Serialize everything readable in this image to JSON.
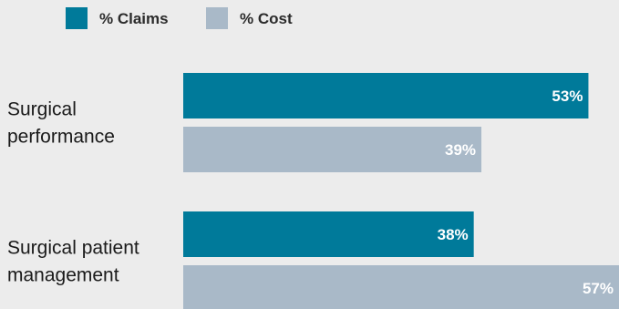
{
  "chart_data": {
    "type": "bar",
    "orientation": "horizontal",
    "categories": [
      [
        "Surgical",
        "performance"
      ],
      [
        "Surgical patient",
        "management"
      ]
    ],
    "series": [
      {
        "name": "% Claims",
        "values": [
          53,
          38
        ],
        "color": "#007a9a"
      },
      {
        "name": "% Cost",
        "values": [
          39,
          57
        ],
        "color": "#a9b9c8"
      }
    ],
    "value_format": "{v}%",
    "xlim": [
      0,
      57
    ],
    "legend_position": "top-left",
    "grid": false,
    "title": "",
    "xlabel": "",
    "ylabel": ""
  }
}
